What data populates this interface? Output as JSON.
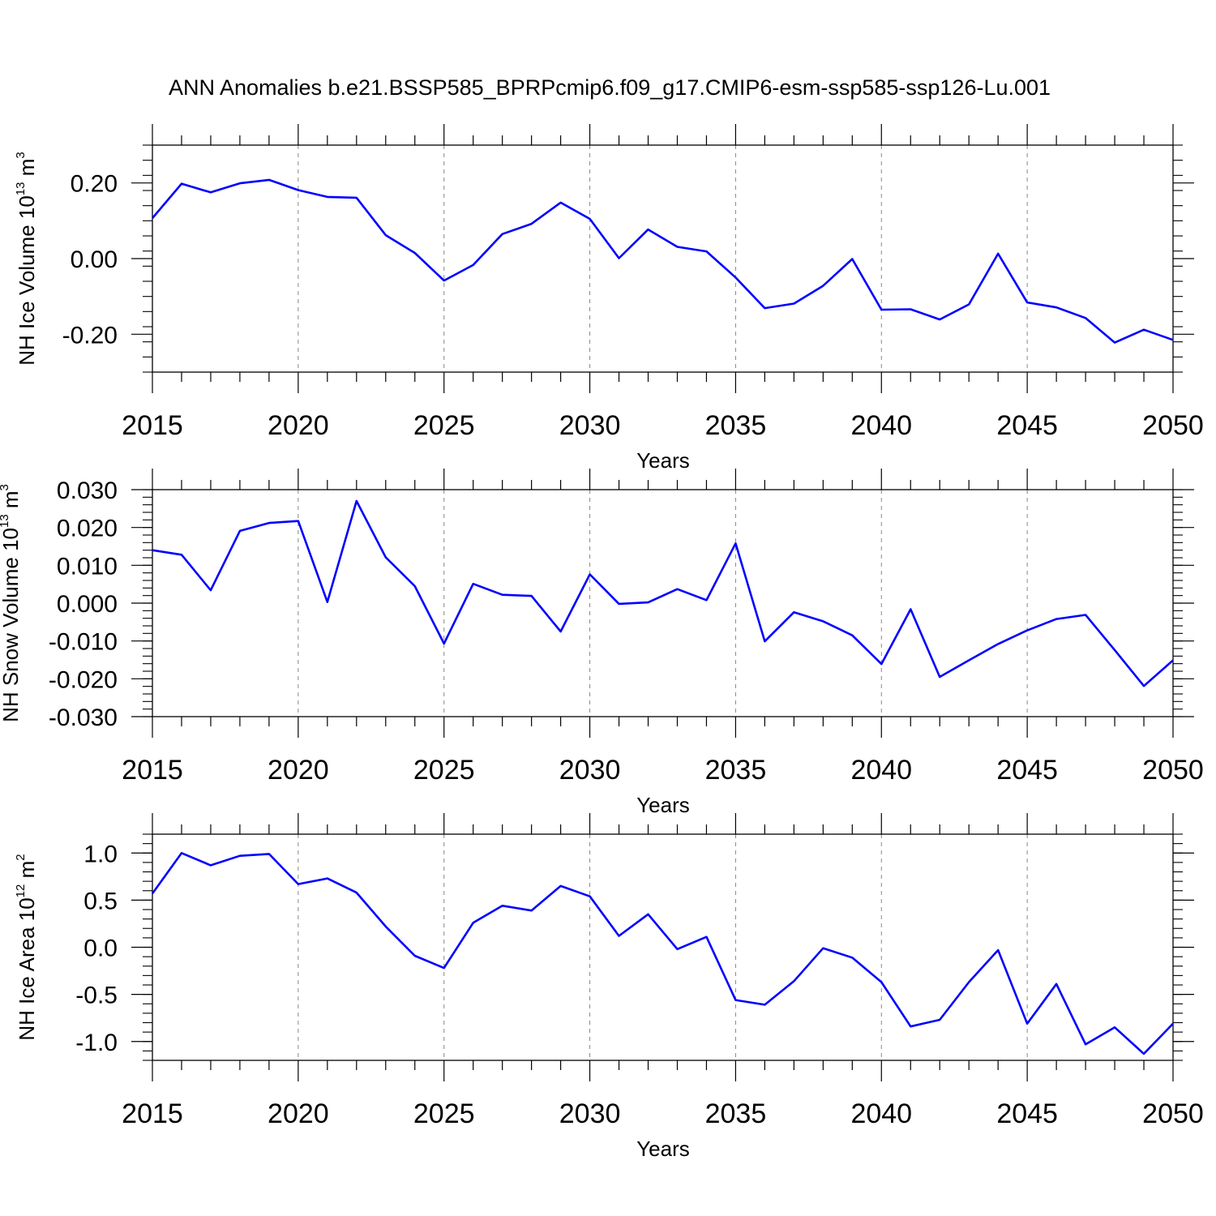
{
  "title": "ANN Anomalies b.e21.BSSP585_BPRPcmip6.f09_g17.CMIP6-esm-ssp585-ssp126-Lu.001",
  "colors": {
    "line": "#0000ff",
    "axis": "#000000",
    "grid": "#888888"
  },
  "chart_data": [
    {
      "type": "line",
      "xlabel": "Years",
      "ylabel": {
        "pre": "NH Ice Volume 10",
        "exp": "13",
        "mid": " m",
        "exp2": "3"
      },
      "xlim": [
        2015,
        2050
      ],
      "ylim": [
        -0.3,
        0.3
      ],
      "xticks": [
        "2015",
        "2020",
        "2025",
        "2030",
        "2035",
        "2040",
        "2045",
        "2050"
      ],
      "yticks": [
        {
          "v": 0.2,
          "label": "0.20"
        },
        {
          "v": 0.0,
          "label": "0.00"
        },
        {
          "v": -0.2,
          "label": "-0.20"
        }
      ],
      "grid": "vertical dashed at major x ticks",
      "x": [
        2015,
        2016,
        2017,
        2018,
        2019,
        2020,
        2021,
        2022,
        2023,
        2024,
        2025,
        2026,
        2027,
        2028,
        2029,
        2030,
        2031,
        2032,
        2033,
        2034,
        2035,
        2036,
        2037,
        2038,
        2039,
        2040,
        2041,
        2042,
        2043,
        2044,
        2045,
        2046,
        2047,
        2048,
        2049,
        2050
      ],
      "values": [
        0.107,
        0.198,
        0.175,
        0.199,
        0.208,
        0.181,
        0.163,
        0.161,
        0.062,
        0.015,
        -0.058,
        -0.017,
        0.065,
        0.092,
        0.148,
        0.105,
        0.001,
        0.077,
        0.031,
        0.019,
        -0.05,
        -0.131,
        -0.119,
        -0.072,
        -0.001,
        -0.135,
        -0.134,
        -0.161,
        -0.121,
        0.013,
        -0.116,
        -0.129,
        -0.157,
        -0.222,
        -0.188,
        -0.215
      ]
    },
    {
      "type": "line",
      "xlabel": "Years",
      "ylabel": {
        "pre": "NH Snow Volume 10",
        "exp": "13",
        "mid": " m",
        "exp2": "3"
      },
      "xlim": [
        2015,
        2050
      ],
      "ylim": [
        -0.03,
        0.03
      ],
      "xticks": [
        "2015",
        "2020",
        "2025",
        "2030",
        "2035",
        "2040",
        "2045",
        "2050"
      ],
      "yticks": [
        {
          "v": 0.03,
          "label": "0.030"
        },
        {
          "v": 0.02,
          "label": "0.020"
        },
        {
          "v": 0.01,
          "label": "0.010"
        },
        {
          "v": 0.0,
          "label": "0.000"
        },
        {
          "v": -0.01,
          "label": "-0.010"
        },
        {
          "v": -0.02,
          "label": "-0.020"
        },
        {
          "v": -0.03,
          "label": "-0.030"
        }
      ],
      "grid": "vertical dashed at major x ticks",
      "x": [
        2015,
        2016,
        2017,
        2018,
        2019,
        2020,
        2021,
        2022,
        2023,
        2024,
        2025,
        2026,
        2027,
        2028,
        2029,
        2030,
        2031,
        2032,
        2033,
        2034,
        2035,
        2036,
        2037,
        2038,
        2039,
        2040,
        2041,
        2042,
        2043,
        2044,
        2045,
        2046,
        2047,
        2048,
        2049,
        2050
      ],
      "values": [
        0.014,
        0.0128,
        0.0034,
        0.0191,
        0.0212,
        0.0217,
        0.0003,
        0.027,
        0.0121,
        0.0045,
        -0.0107,
        0.0051,
        0.0022,
        0.0019,
        -0.0075,
        0.0076,
        -0.0002,
        0.0002,
        0.0037,
        0.0008,
        0.0158,
        -0.0101,
        -0.0024,
        -0.0048,
        -0.0085,
        -0.0161,
        -0.0016,
        -0.0195,
        -0.0151,
        -0.0108,
        -0.0072,
        -0.0042,
        -0.0031,
        -0.0124,
        -0.0219,
        -0.0151
      ]
    },
    {
      "type": "line",
      "xlabel": "Years",
      "ylabel": {
        "pre": "NH Ice Area 10",
        "exp": "12",
        "mid": " m",
        "exp2": "2"
      },
      "xlim": [
        2015,
        2050
      ],
      "ylim": [
        -1.2,
        1.2
      ],
      "xticks": [
        "2015",
        "2020",
        "2025",
        "2030",
        "2035",
        "2040",
        "2045",
        "2050"
      ],
      "yticks": [
        {
          "v": 1.0,
          "label": "1.0"
        },
        {
          "v": 0.5,
          "label": "0.5"
        },
        {
          "v": 0.0,
          "label": "0.0"
        },
        {
          "v": -0.5,
          "label": "-0.5"
        },
        {
          "v": -1.0,
          "label": "-1.0"
        }
      ],
      "grid": "vertical dashed at major x ticks",
      "x": [
        2015,
        2016,
        2017,
        2018,
        2019,
        2020,
        2021,
        2022,
        2023,
        2024,
        2025,
        2026,
        2027,
        2028,
        2029,
        2030,
        2031,
        2032,
        2033,
        2034,
        2035,
        2036,
        2037,
        2038,
        2039,
        2040,
        2041,
        2042,
        2043,
        2044,
        2045,
        2046,
        2047,
        2048,
        2049,
        2050
      ],
      "values": [
        0.57,
        1.0,
        0.87,
        0.97,
        0.99,
        0.67,
        0.73,
        0.58,
        0.22,
        -0.09,
        -0.22,
        0.26,
        0.44,
        0.39,
        0.65,
        0.54,
        0.12,
        0.35,
        -0.02,
        0.11,
        -0.56,
        -0.61,
        -0.36,
        -0.01,
        -0.11,
        -0.37,
        -0.84,
        -0.77,
        -0.37,
        -0.03,
        -0.81,
        -0.39,
        -1.03,
        -0.85,
        -1.13,
        -0.81
      ]
    }
  ]
}
